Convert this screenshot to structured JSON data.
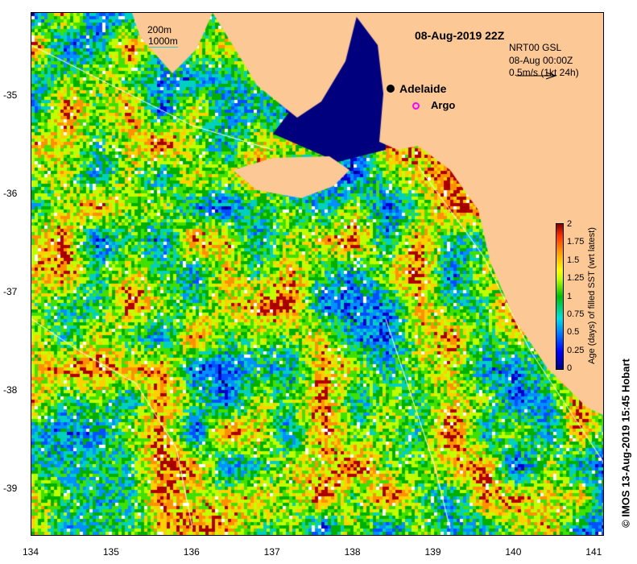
{
  "title": "08-Aug-2019 22Z",
  "product": {
    "line1": "NRT00 GSL",
    "line2": "08-Aug 00:00Z",
    "line3": "0.5m/s (1kt 24h)"
  },
  "isobaths": {
    "shallow": "200m",
    "deep": "1000m"
  },
  "places": {
    "city": "Adelaide",
    "argo": "Argo"
  },
  "x_ticks": [
    "134",
    "135",
    "136",
    "137",
    "138",
    "139",
    "140",
    "141"
  ],
  "y_ticks": [
    "-35",
    "-36",
    "-37",
    "-38",
    "-39"
  ],
  "colorbar": {
    "title": "Age (days) of filled SST (wrt latest)",
    "ticks": [
      "2",
      "1.75",
      "1.5",
      "1.25",
      "1",
      "0.75",
      "0.5",
      "0.25",
      "0"
    ],
    "range": [
      0,
      2
    ]
  },
  "copyright": "© IMOS 13-Aug-2019 15:45 Hobart",
  "colors": {
    "land": "#fcc896",
    "argo": "#ff00ff"
  }
}
